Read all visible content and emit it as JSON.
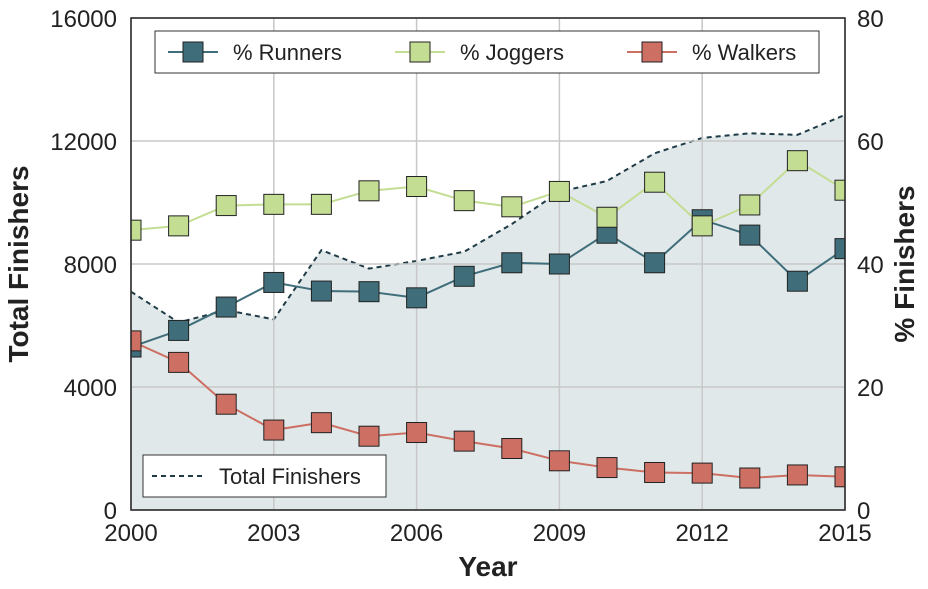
{
  "chart_data": {
    "type": "line",
    "title": "",
    "xlabel": "Year",
    "ylabel_left": "Total Finishers",
    "ylabel_right": "% Finishers",
    "x": [
      2000,
      2001,
      2002,
      2003,
      2004,
      2005,
      2006,
      2007,
      2008,
      2009,
      2010,
      2011,
      2012,
      2013,
      2014,
      2015
    ],
    "xlim": [
      2000,
      2015
    ],
    "xticks": [
      "2000",
      "2003",
      "2006",
      "2009",
      "2012",
      "2015"
    ],
    "ylim_left": [
      0,
      16000
    ],
    "yticks_left": [
      "0",
      "4000",
      "8000",
      "12000",
      "16000"
    ],
    "ylim_right": [
      0,
      80
    ],
    "yticks_right": [
      "0",
      "20",
      "40",
      "60",
      "80"
    ],
    "grid": true,
    "total_finishers": {
      "name": "Total Finishers",
      "axis": "left",
      "style": "dashed",
      "fill": "#e0e8ea",
      "color": "#1f3b45",
      "values": [
        7100,
        6100,
        6500,
        6200,
        8450,
        7850,
        8100,
        8400,
        9300,
        10350,
        10700,
        11600,
        12100,
        12250,
        12200,
        12850
      ]
    },
    "series": [
      {
        "name": "% Runners",
        "axis": "right",
        "color": "#3f6e7a",
        "values": [
          26.5,
          29.2,
          33.0,
          37.0,
          35.6,
          35.5,
          34.5,
          38.0,
          40.2,
          40.0,
          45.0,
          40.2,
          47.2,
          44.7,
          37.2,
          42.5
        ]
      },
      {
        "name": "% Joggers",
        "axis": "right",
        "color": "#c3dd92",
        "values": [
          45.5,
          46.2,
          49.5,
          49.7,
          49.7,
          51.9,
          52.6,
          50.3,
          49.3,
          51.8,
          47.6,
          53.3,
          46.2,
          49.6,
          56.8,
          52.0
        ]
      },
      {
        "name": "% Walkers",
        "axis": "right",
        "color": "#cd6f62",
        "values": [
          27.5,
          24.0,
          17.2,
          13.0,
          14.2,
          12.0,
          12.6,
          11.2,
          10.0,
          8.0,
          6.9,
          6.1,
          6.0,
          5.2,
          5.7,
          5.4
        ]
      }
    ],
    "legend_top": {
      "placement": "top",
      "entries": [
        "% Runners",
        "% Joggers",
        "% Walkers"
      ]
    },
    "legend_bottom": {
      "placement": "lower-left",
      "entries": [
        "Total Finishers"
      ]
    }
  }
}
